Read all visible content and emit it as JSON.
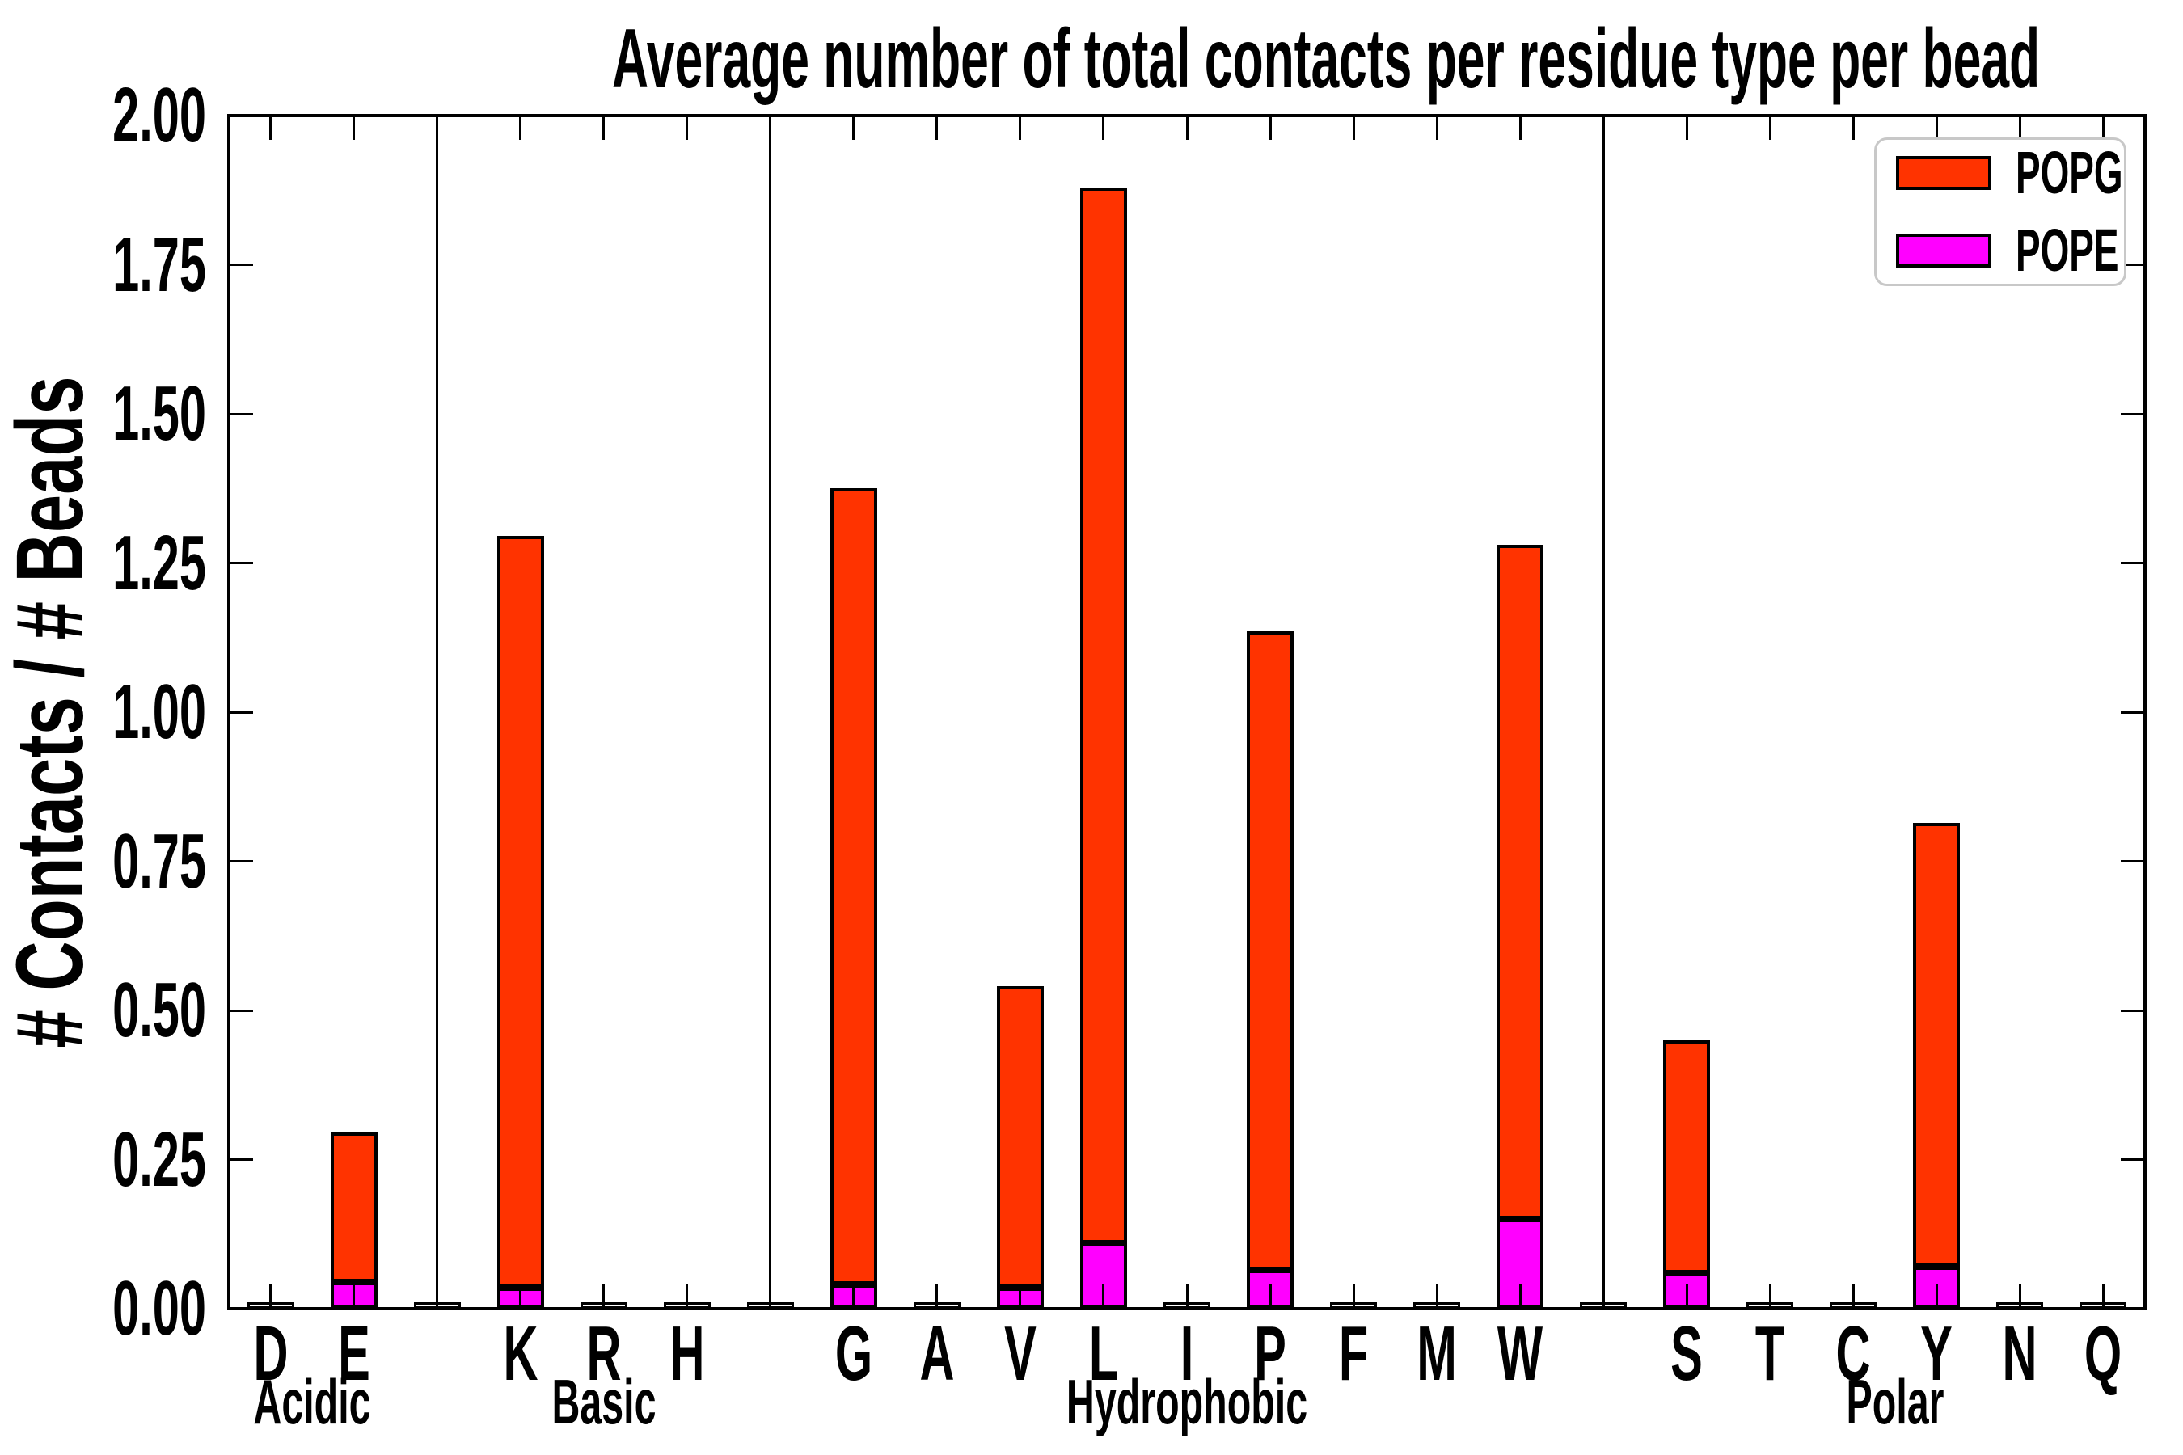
{
  "chart_data": {
    "type": "bar",
    "stacked": true,
    "title": "Average number of total contacts per residue type per bead",
    "xlabel": "",
    "ylabel": "# Contacts / # Beads",
    "ylim": [
      0.0,
      2.0
    ],
    "ytick_step": 0.25,
    "yticks": [
      "0.00",
      "0.25",
      "0.50",
      "0.75",
      "1.00",
      "1.25",
      "1.50",
      "1.75",
      "2.00"
    ],
    "grid": false,
    "legend_position": "upper right",
    "legend_order": [
      "POPG",
      "POPE"
    ],
    "categories": [
      "D",
      "E",
      "K",
      "R",
      "H",
      "G",
      "A",
      "V",
      "L",
      "I",
      "P",
      "F",
      "M",
      "W",
      "S",
      "T",
      "C",
      "Y",
      "N",
      "Q"
    ],
    "groups": [
      {
        "label": "Acidic",
        "residues": [
          "D",
          "E"
        ]
      },
      {
        "label": "Basic",
        "residues": [
          "K",
          "R",
          "H"
        ]
      },
      {
        "label": "Hydrophobic",
        "residues": [
          "G",
          "A",
          "V",
          "L",
          "I",
          "P",
          "F",
          "M",
          "W"
        ]
      },
      {
        "label": "Polar",
        "residues": [
          "S",
          "T",
          "C",
          "Y",
          "N",
          "Q"
        ]
      }
    ],
    "series": [
      {
        "name": "POPE",
        "color": "#FF00FF",
        "values": [
          0,
          0.045,
          0.035,
          0,
          0,
          0.04,
          0,
          0.035,
          0.11,
          0,
          0.065,
          0,
          0,
          0.15,
          0.06,
          0,
          0,
          0.07,
          0,
          0
        ]
      },
      {
        "name": "POPG",
        "color": "#FF3300",
        "values": [
          0,
          0.25,
          1.26,
          0,
          0,
          1.335,
          0,
          0.505,
          1.77,
          0,
          1.07,
          0,
          0,
          1.13,
          0.39,
          0,
          0,
          0.745,
          0,
          0
        ]
      }
    ],
    "totals": [
      0,
      0.295,
      1.295,
      0,
      0,
      1.375,
      0,
      0.54,
      1.88,
      0,
      1.135,
      0,
      0,
      1.28,
      0.45,
      0,
      0,
      0.815,
      0,
      0
    ]
  },
  "colors": {
    "popg": "#FF3300",
    "pope": "#FF00FF",
    "edge": "#000000",
    "background": "#FFFFFF",
    "legend_border": "#C8C8C8"
  }
}
